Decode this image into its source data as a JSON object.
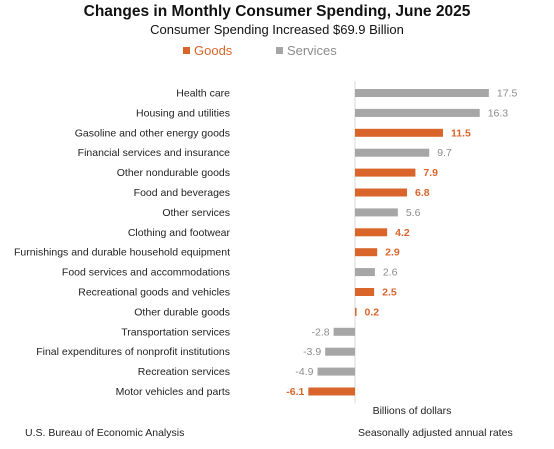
{
  "chart_data": {
    "type": "bar",
    "orientation": "horizontal",
    "title": "Changes in Monthly Consumer Spending, June 2025",
    "subtitle": "Consumer Spending Increased $69.9 Billion",
    "legend": [
      {
        "name": "Goods",
        "color": "#d9652b"
      },
      {
        "name": "Services",
        "color": "#a6a6a6"
      }
    ],
    "legend_position": "top",
    "categories": [
      "Health care",
      "Housing and utilities",
      "Gasoline and other energy goods",
      "Financial services and insurance",
      "Other nondurable goods",
      "Food and beverages",
      "Other services",
      "Clothing and footwear",
      "Furnishings and durable household equipment",
      "Food services and accommodations",
      "Recreational goods and vehicles",
      "Other durable goods",
      "Transportation services",
      "Final expenditures of nonprofit institutions",
      "Recreation services",
      "Motor vehicles and parts"
    ],
    "values": [
      17.5,
      16.3,
      11.5,
      9.7,
      7.9,
      6.8,
      5.6,
      4.2,
      2.9,
      2.6,
      2.5,
      0.2,
      -2.8,
      -3.9,
      -4.9,
      -6.1
    ],
    "value_labels": [
      "17.5",
      "16.3",
      "11.5",
      "9.7",
      "7.9",
      "6.8",
      "5.6",
      "4.2",
      "2.9",
      "2.6",
      "2.5",
      "0.2",
      "-2.8",
      "-3.9",
      "-4.9",
      "-6.1"
    ],
    "group": [
      "Services",
      "Services",
      "Goods",
      "Services",
      "Goods",
      "Goods",
      "Services",
      "Goods",
      "Goods",
      "Services",
      "Goods",
      "Goods",
      "Services",
      "Services",
      "Services",
      "Goods"
    ],
    "xlim": [
      -8,
      20
    ],
    "grid": false,
    "xlabel": "Billions of dollars",
    "note": "Seasonally adjusted annual rates",
    "source": "U.S. Bureau of Economic Analysis"
  }
}
